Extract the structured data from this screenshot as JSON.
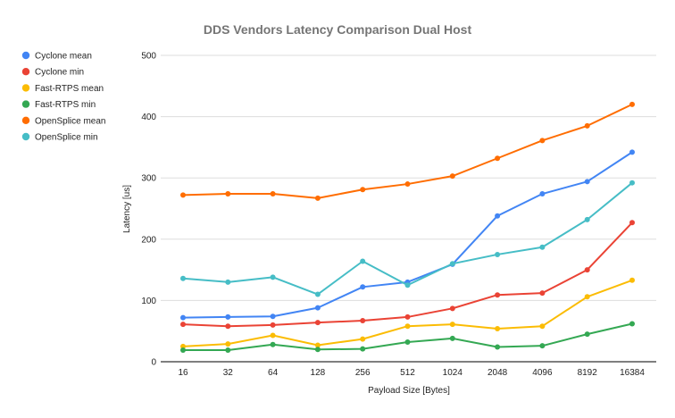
{
  "chart_data": {
    "type": "line",
    "title": "DDS Vendors Latency Comparison Dual Host",
    "xlabel": "Payload Size [Bytes]",
    "ylabel": "Latency [us]",
    "ylim": [
      0,
      500
    ],
    "yticks": [
      0,
      100,
      200,
      300,
      400,
      500
    ],
    "categories": [
      "16",
      "32",
      "64",
      "128",
      "256",
      "512",
      "1024",
      "2048",
      "4096",
      "8192",
      "16384"
    ],
    "grid": true,
    "legend_position": "left",
    "series": [
      {
        "name": "Cyclone mean",
        "color": "#4285f4",
        "values": [
          72,
          73,
          74,
          88,
          122,
          130,
          159,
          238,
          274,
          294,
          342
        ]
      },
      {
        "name": "Cyclone min",
        "color": "#ea4335",
        "values": [
          61,
          58,
          60,
          64,
          67,
          73,
          87,
          109,
          112,
          150,
          227
        ]
      },
      {
        "name": "Fast-RTPS mean",
        "color": "#fbbc04",
        "values": [
          25,
          29,
          43,
          27,
          37,
          58,
          61,
          54,
          58,
          106,
          133
        ]
      },
      {
        "name": "Fast-RTPS min",
        "color": "#34a853",
        "values": [
          19,
          19,
          28,
          20,
          21,
          32,
          38,
          24,
          26,
          45,
          62
        ]
      },
      {
        "name": "OpenSplice mean",
        "color": "#ff6d01",
        "values": [
          272,
          274,
          274,
          267,
          281,
          290,
          303,
          332,
          361,
          385,
          420
        ]
      },
      {
        "name": "OpenSplice min",
        "color": "#46bdc6",
        "values": [
          136,
          130,
          138,
          110,
          164,
          125,
          160,
          175,
          187,
          232,
          292
        ]
      }
    ]
  }
}
